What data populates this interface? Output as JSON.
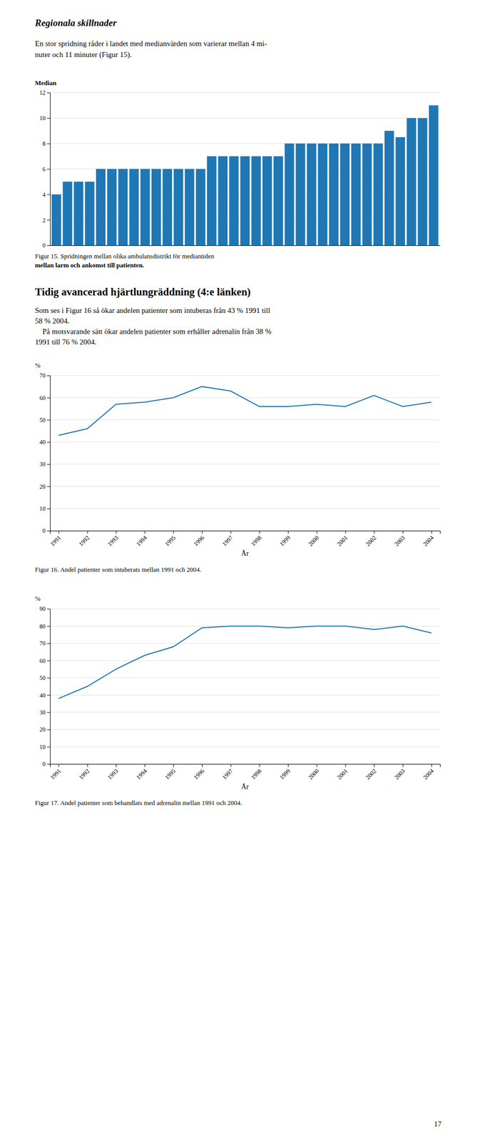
{
  "heading1": "Regionala skillnader",
  "para1": [
    "En stor spridning råder i landet med medianvärden som varierar mellan 4 mi-",
    "nuter och 11 minuter (Figur 15)."
  ],
  "heading2": "Tidig avancerad hjärtlungräddning (4:e länken)",
  "para2": [
    "Som ses i Figur 16 så ökar andelen patienter som intuberas från 43 % 1991 till",
    "58 % 2004.",
    "    På motsvarande sätt ökar andelen patienter som erhåller adrenalin från 38 %",
    "1991 till 76 % 2004."
  ],
  "page_number": "17",
  "chart_data": [
    {
      "type": "bar",
      "ylabel": "Median",
      "caption": [
        "Figur 15. Spridningen mellan olika ambulansdistrikt för mediantiden",
        "mellan larm och ankomst till patienten."
      ],
      "categories": [
        null,
        null,
        null,
        null,
        null,
        null,
        null,
        null,
        null,
        null,
        null,
        null,
        null,
        null,
        null,
        null,
        null,
        null,
        null,
        null,
        null,
        null,
        null,
        null,
        null,
        null,
        null,
        null,
        null,
        null,
        null,
        null,
        null,
        null,
        null
      ],
      "values": [
        4,
        5,
        5,
        5,
        6,
        6,
        6,
        6,
        6,
        6,
        6,
        6,
        6,
        6,
        7,
        7,
        7,
        7,
        7,
        7,
        7,
        8,
        8,
        8,
        8,
        8,
        8,
        8,
        8,
        8,
        9,
        8.5,
        10,
        10,
        11
      ],
      "ylim": [
        0,
        12
      ],
      "yticks": [
        0,
        2,
        4,
        6,
        8,
        10,
        12
      ],
      "grid": true,
      "tick_labels": "y"
    },
    {
      "type": "line",
      "ylabel": "%",
      "xlabel": "År",
      "caption": [
        "Figur 16. Andel patienter som intuberats mellan 1991 och 2004."
      ],
      "x": [
        1991,
        1992,
        1993,
        1994,
        1995,
        1996,
        1997,
        1998,
        1999,
        2000,
        2001,
        2002,
        2003,
        2004
      ],
      "values": [
        43,
        46,
        57,
        58,
        60,
        65,
        63,
        56,
        56,
        57,
        56,
        61,
        56,
        58
      ],
      "xlim": [
        1990.7,
        2004.3
      ],
      "xticks": [
        1991,
        1992,
        1993,
        1994,
        1995,
        1996,
        1997,
        1998,
        1999,
        2000,
        2001,
        2002,
        2003,
        2004
      ],
      "ylim": [
        0,
        70
      ],
      "yticks": [
        0,
        10,
        20,
        30,
        40,
        50,
        60,
        70
      ],
      "grid": true
    },
    {
      "type": "line",
      "ylabel": "%",
      "xlabel": "År",
      "caption": [
        "Figur 17. Andel patienter som behandlats med adrenalin mellan 1991 och 2004."
      ],
      "x": [
        1991,
        1992,
        1993,
        1994,
        1995,
        1996,
        1997,
        1998,
        1999,
        2000,
        2001,
        2002,
        2003,
        2004
      ],
      "values": [
        38,
        45,
        55,
        63,
        68,
        79,
        80,
        80,
        79,
        80,
        80,
        78,
        80,
        76
      ],
      "xlim": [
        1990.7,
        2004.3
      ],
      "xticks": [
        1991,
        1992,
        1993,
        1994,
        1995,
        1996,
        1997,
        1998,
        1999,
        2000,
        2001,
        2002,
        2003,
        2004
      ],
      "ylim": [
        0,
        90
      ],
      "yticks": [
        0,
        10,
        20,
        30,
        40,
        50,
        60,
        70,
        80,
        90
      ],
      "grid": true
    }
  ]
}
